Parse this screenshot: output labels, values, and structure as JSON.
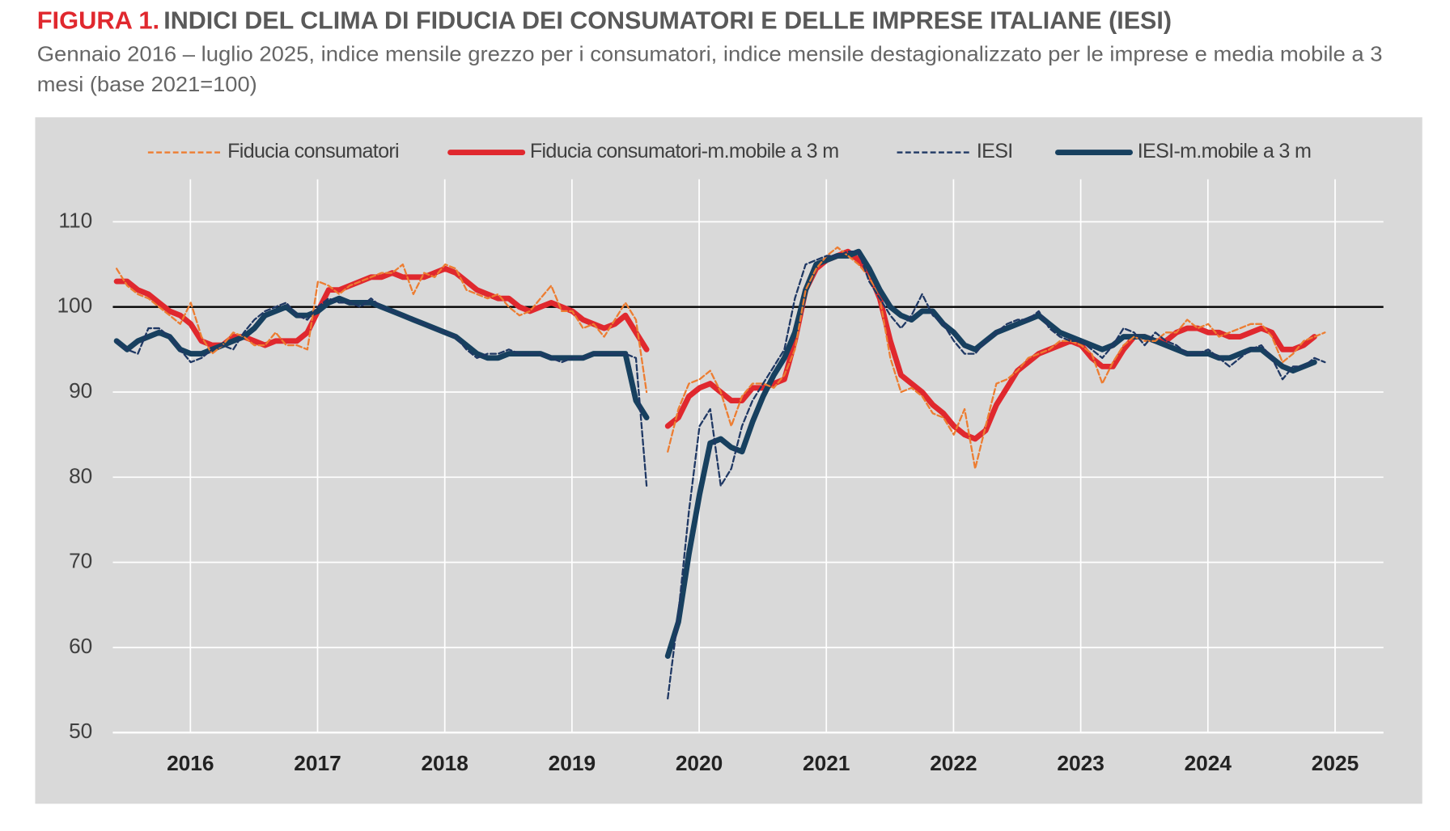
{
  "chart_data": {
    "type": "line",
    "title_prefix": "FIGURA 1.",
    "title": "INDICI DEL CLIMA DI FIDUCIA DEI CONSUMATORI E DELLE IMPRESE ITALIANE (IESI)",
    "subtitle": [
      "Gennaio 2016 – luglio 2025, indice mensile grezzo per i consumatori, indice mensile destagionalizzato per le imprese e media mobile a 3",
      "mesi (base 2021=100)"
    ],
    "xlim": [
      2015.97,
      2025.96
    ],
    "xticks": [
      {
        "value": 2016.58,
        "label": "2016"
      },
      {
        "value": 2017.58,
        "label": "2017"
      },
      {
        "value": 2018.58,
        "label": "2018"
      },
      {
        "value": 2019.58,
        "label": "2019"
      },
      {
        "value": 2020.58,
        "label": "2020"
      },
      {
        "value": 2021.58,
        "label": "2021"
      },
      {
        "value": 2022.58,
        "label": "2022"
      },
      {
        "value": 2023.58,
        "label": "2023"
      },
      {
        "value": 2024.58,
        "label": "2024"
      },
      {
        "value": 2025.58,
        "label": "2025"
      }
    ],
    "ylim": [
      50,
      115
    ],
    "yticks": [
      50,
      60,
      70,
      80,
      90,
      100,
      110
    ],
    "grid": true,
    "hline": 100,
    "legend": "top",
    "x": [
      2016,
      2016.083,
      2016.167,
      2016.25,
      2016.333,
      2016.417,
      2016.5,
      2016.583,
      2016.667,
      2016.75,
      2016.833,
      2016.917,
      2017,
      2017.083,
      2017.167,
      2017.25,
      2017.333,
      2017.417,
      2017.5,
      2017.583,
      2017.667,
      2017.75,
      2017.833,
      2017.917,
      2018,
      2018.083,
      2018.167,
      2018.25,
      2018.333,
      2018.417,
      2018.5,
      2018.583,
      2018.667,
      2018.75,
      2018.833,
      2018.917,
      2019,
      2019.083,
      2019.167,
      2019.25,
      2019.333,
      2019.417,
      2019.5,
      2019.583,
      2019.667,
      2019.75,
      2019.833,
      2019.917,
      2020,
      2020.083,
      2020.167,
      2020.25,
      2020.333,
      2020.417,
      2020.5,
      2020.583,
      2020.667,
      2020.75,
      2020.833,
      2020.917,
      2021,
      2021.083,
      2021.167,
      2021.25,
      2021.333,
      2021.417,
      2021.5,
      2021.583,
      2021.667,
      2021.75,
      2021.833,
      2021.917,
      2022,
      2022.083,
      2022.167,
      2022.25,
      2022.333,
      2022.417,
      2022.5,
      2022.583,
      2022.667,
      2022.75,
      2022.833,
      2022.917,
      2023,
      2023.083,
      2023.167,
      2023.25,
      2023.333,
      2023.417,
      2023.5,
      2023.583,
      2023.667,
      2023.75,
      2023.833,
      2023.917,
      2024,
      2024.083,
      2024.167,
      2024.25,
      2024.333,
      2024.417,
      2024.5,
      2024.583,
      2024.667,
      2024.75,
      2024.833,
      2024.917,
      2025,
      2025.083,
      2025.167,
      2025.25,
      2025.333,
      2025.417,
      2025.5
    ],
    "series": [
      {
        "name": "Fiducia consumatori",
        "color": "#ed7d31",
        "dashed": true,
        "values": [
          104.5,
          102.5,
          101.5,
          101,
          100,
          99,
          98,
          100.5,
          96.5,
          94.5,
          95.5,
          97,
          96.5,
          95.5,
          95.5,
          97,
          95.5,
          95.5,
          95,
          103,
          102.5,
          101.5,
          102.5,
          103,
          103.5,
          104,
          104,
          105,
          101.5,
          104,
          103.5,
          105,
          104.5,
          102,
          101.5,
          101,
          101.5,
          100,
          99,
          99.5,
          101,
          102.5,
          99.5,
          99.5,
          97.5,
          98,
          96.5,
          98.5,
          100.5,
          98.5,
          90,
          null,
          83,
          88,
          91,
          91.5,
          92.5,
          90,
          86,
          89.5,
          91,
          91,
          90.5,
          92,
          95,
          102,
          104.5,
          106,
          107,
          106,
          105,
          103.5,
          101,
          94,
          90,
          90.5,
          89.5,
          87.5,
          87,
          85,
          88,
          81,
          86,
          91,
          91.5,
          92.5,
          94,
          94.5,
          95,
          96,
          96,
          95.5,
          94.5,
          91,
          93.5,
          95.5,
          96.5,
          96,
          96,
          97,
          97,
          98.5,
          97.5,
          98,
          96.5,
          97,
          97.5,
          98,
          98,
          96.5,
          93.5,
          94.5,
          96,
          96.5,
          97
        ]
      },
      {
        "name": "Fiducia consumatori-m.mobile a 3 m",
        "color": "#e0282e",
        "dashed": false,
        "values": [
          103,
          103,
          102,
          101.5,
          100.5,
          99.5,
          99,
          98,
          96,
          95.5,
          95.5,
          96.5,
          96.5,
          96,
          95.5,
          96,
          96,
          96,
          97,
          99.5,
          102,
          102,
          102.5,
          103,
          103.5,
          103.5,
          104,
          103.5,
          103.5,
          103.5,
          104,
          104.5,
          104,
          103,
          102,
          101.5,
          101,
          101,
          100,
          99.5,
          100,
          100.5,
          100,
          99.5,
          98.5,
          98,
          97.5,
          98,
          99,
          97,
          95,
          null,
          86,
          87,
          89.5,
          90.5,
          91,
          90,
          89,
          89,
          90.5,
          90.5,
          91,
          91.5,
          96,
          102,
          104.5,
          105.5,
          106,
          106.5,
          105.5,
          104,
          101,
          96,
          92,
          91,
          90,
          88.5,
          87.5,
          86,
          85,
          84.5,
          85.5,
          88.5,
          90.5,
          92.5,
          93.5,
          94.5,
          95,
          95.5,
          96,
          95.5,
          94,
          93,
          93,
          95,
          96.5,
          96.5,
          96,
          96,
          97,
          97.5,
          97.5,
          97,
          97,
          96.5,
          96.5,
          97,
          97.5,
          97,
          95,
          95,
          95.5,
          96.5,
          null
        ]
      },
      {
        "name": "IESI",
        "color": "#1f3864",
        "dashed": true,
        "values": [
          96,
          95,
          94.5,
          97.5,
          97.5,
          96.5,
          95,
          93.5,
          94,
          95,
          95.5,
          95,
          97,
          98.5,
          99.5,
          100,
          100.5,
          99,
          98.5,
          100,
          101,
          100.5,
          100.5,
          100,
          101,
          100,
          99.5,
          99,
          98.5,
          98,
          97.5,
          97,
          96.5,
          95,
          94,
          94.5,
          94.5,
          95,
          94.5,
          94.5,
          94.5,
          94,
          93.5,
          94,
          94,
          94.5,
          94.5,
          94.5,
          94.5,
          94,
          79,
          null,
          54,
          64,
          76,
          86,
          88,
          79,
          81,
          86,
          89,
          91,
          93,
          95,
          101,
          105,
          105.5,
          106,
          106,
          106.5,
          106.5,
          103,
          101,
          99,
          97.5,
          99,
          101.5,
          99,
          98,
          96,
          94.5,
          94.5,
          96,
          97,
          98,
          98.5,
          98.5,
          99.5,
          97.5,
          96.5,
          96,
          96,
          95,
          94,
          95.5,
          97.5,
          97,
          95.5,
          97,
          96,
          95.5,
          94.5,
          94.5,
          95,
          94,
          93,
          94,
          95,
          95.5,
          94,
          91.5,
          93,
          93,
          94,
          93.5
        ]
      },
      {
        "name": "IESI-m.mobile a 3 m",
        "color": "#17405f",
        "dashed": false,
        "values": [
          96,
          95,
          96,
          96.5,
          97,
          96.5,
          95,
          94.5,
          94.5,
          95,
          95.5,
          96,
          96.5,
          97.5,
          99,
          99.5,
          100,
          99,
          99,
          99.5,
          100.5,
          101,
          100.5,
          100.5,
          100.5,
          100,
          99.5,
          99,
          98.5,
          98,
          97.5,
          97,
          96.5,
          95.5,
          94.5,
          94,
          94,
          94.5,
          94.5,
          94.5,
          94.5,
          94,
          94,
          94,
          94,
          94.5,
          94.5,
          94.5,
          94.5,
          89,
          87,
          null,
          59,
          63,
          71,
          78,
          84,
          84.5,
          83.5,
          83,
          86.5,
          89.5,
          92,
          94,
          97,
          102,
          105,
          105.5,
          106,
          106,
          106.5,
          104.5,
          102,
          100,
          99,
          98.5,
          99.5,
          99.5,
          98,
          97,
          95.5,
          95,
          96,
          97,
          97.5,
          98,
          98.5,
          99,
          98,
          97,
          96.5,
          96,
          95.5,
          95,
          95.5,
          96.5,
          96.5,
          96.5,
          96,
          95.5,
          95,
          94.5,
          94.5,
          94.5,
          94,
          94,
          94.5,
          95,
          95,
          94,
          93,
          92.5,
          93,
          93.5,
          null
        ]
      }
    ]
  }
}
